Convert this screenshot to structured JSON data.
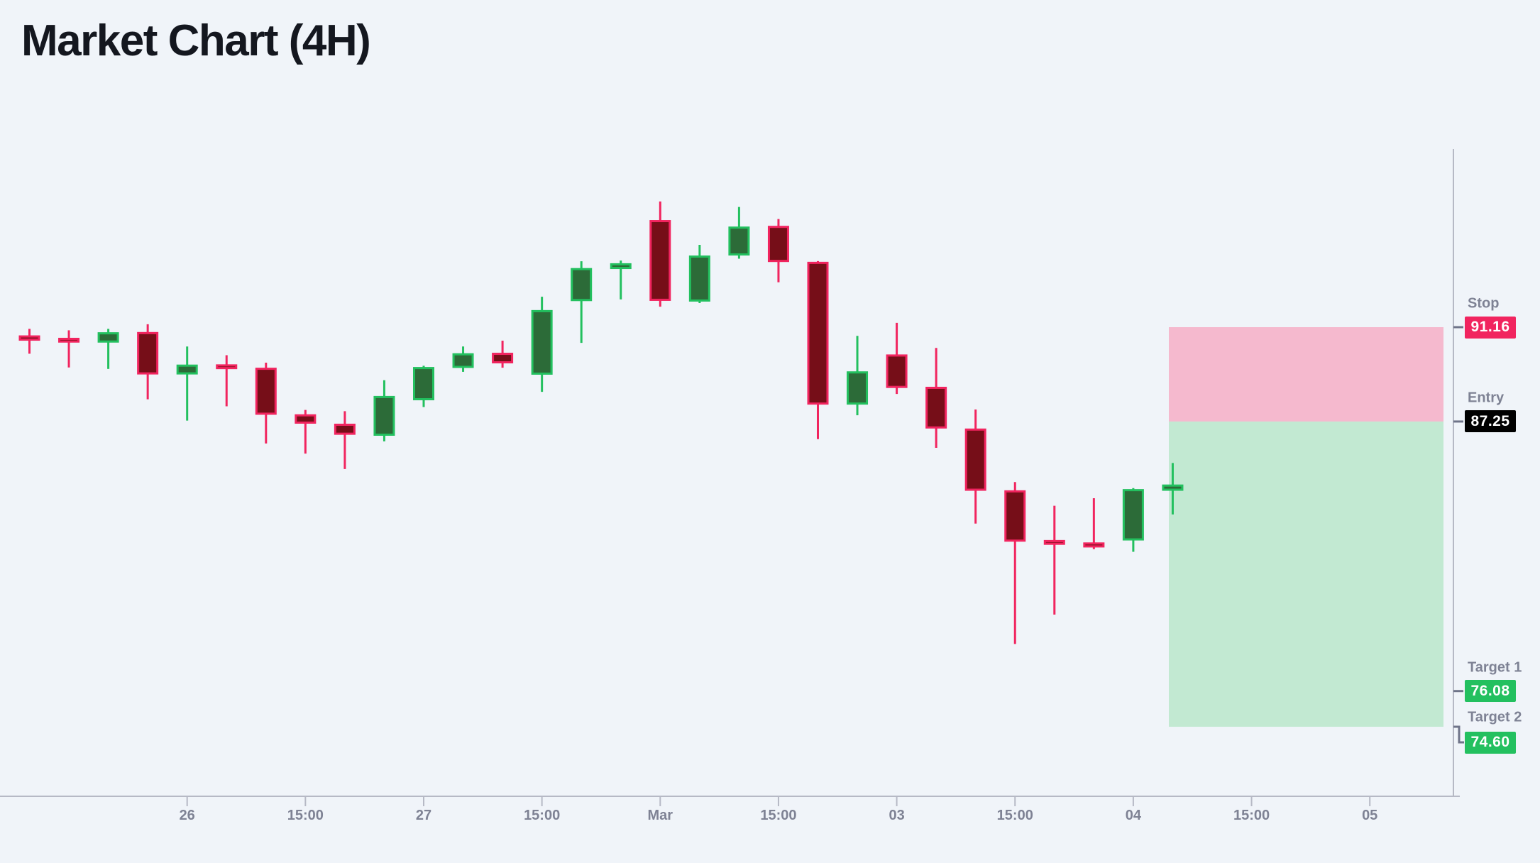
{
  "title": "Market Chart (4H)",
  "colors": {
    "background": "#f0f4f9",
    "bear_line": "#f1245f",
    "bear_body": "#760e18",
    "bull_line": "#23c05f",
    "bull_body": "#2c6b38",
    "stop_zone_fill": "#f5b9ce",
    "profit_zone_fill": "#c2e9d2",
    "stop_badge_bg": "#f1245f",
    "entry_badge_bg": "#000000",
    "target_badge_bg": "#23c05f",
    "axis_line": "#b6b9c5",
    "axis_text": "#7e8294",
    "level_tick": "#6f7489",
    "title_text": "#14171f"
  },
  "levels": {
    "stop": {
      "label": "Stop",
      "value": "91.16",
      "price": 91.16
    },
    "entry": {
      "label": "Entry",
      "value": "87.25",
      "price": 87.25
    },
    "target1": {
      "label": "Target 1",
      "value": "76.08",
      "price": 76.08
    },
    "target2": {
      "label": "Target 2",
      "value": "74.60",
      "price": 74.6
    }
  },
  "chart_data": {
    "type": "candlestick",
    "timeframe": "4H",
    "x_axis_labels": [
      {
        "candle_index": 4,
        "label": "26"
      },
      {
        "candle_index": 7,
        "label": "15:00"
      },
      {
        "candle_index": 10,
        "label": "27"
      },
      {
        "candle_index": 13,
        "label": "15:00"
      },
      {
        "candle_index": 16,
        "label": "Mar"
      },
      {
        "candle_index": 19,
        "label": "15:00"
      },
      {
        "candle_index": 22,
        "label": "03"
      },
      {
        "candle_index": 25,
        "label": "15:00"
      },
      {
        "candle_index": 28,
        "label": "04"
      },
      {
        "candle_index": 31,
        "label": "15:00"
      },
      {
        "candle_index": 34,
        "label": "05"
      }
    ],
    "candles": [
      {
        "o": 90.82,
        "h": 91.09,
        "l": 90.06,
        "c": 90.6
      },
      {
        "o": 90.72,
        "h": 91.03,
        "l": 89.49,
        "c": 90.52
      },
      {
        "o": 90.52,
        "h": 91.09,
        "l": 89.43,
        "c": 90.95
      },
      {
        "o": 90.96,
        "h": 91.28,
        "l": 88.17,
        "c": 89.2
      },
      {
        "o": 89.2,
        "h": 90.36,
        "l": 87.29,
        "c": 89.61
      },
      {
        "o": 89.62,
        "h": 90.0,
        "l": 87.88,
        "c": 89.42
      },
      {
        "o": 89.48,
        "h": 89.69,
        "l": 86.34,
        "c": 87.53
      },
      {
        "o": 87.55,
        "h": 87.73,
        "l": 85.92,
        "c": 87.16
      },
      {
        "o": 87.16,
        "h": 87.68,
        "l": 85.28,
        "c": 86.7
      },
      {
        "o": 86.66,
        "h": 88.96,
        "l": 86.43,
        "c": 88.31
      },
      {
        "o": 88.13,
        "h": 89.56,
        "l": 87.85,
        "c": 89.51
      },
      {
        "o": 89.47,
        "h": 90.36,
        "l": 89.31,
        "c": 90.08
      },
      {
        "o": 90.1,
        "h": 90.6,
        "l": 89.48,
        "c": 89.66
      },
      {
        "o": 89.19,
        "h": 92.42,
        "l": 88.48,
        "c": 91.87
      },
      {
        "o": 92.24,
        "h": 93.89,
        "l": 90.51,
        "c": 93.61
      },
      {
        "o": 93.57,
        "h": 93.92,
        "l": 92.31,
        "c": 93.81
      },
      {
        "o": 95.6,
        "h": 96.37,
        "l": 92.01,
        "c": 92.25
      },
      {
        "o": 92.22,
        "h": 94.57,
        "l": 92.16,
        "c": 94.13
      },
      {
        "o": 94.13,
        "h": 96.14,
        "l": 94.0,
        "c": 95.33
      },
      {
        "o": 95.36,
        "h": 95.64,
        "l": 93.02,
        "c": 93.86
      },
      {
        "o": 93.87,
        "h": 93.9,
        "l": 86.52,
        "c": 87.95
      },
      {
        "o": 87.95,
        "h": 90.8,
        "l": 87.51,
        "c": 89.33
      },
      {
        "o": 90.03,
        "h": 91.34,
        "l": 88.39,
        "c": 88.64
      },
      {
        "o": 88.69,
        "h": 90.3,
        "l": 86.16,
        "c": 86.96
      },
      {
        "o": 86.96,
        "h": 87.75,
        "l": 83.02,
        "c": 84.38
      },
      {
        "o": 84.4,
        "h": 84.74,
        "l": 78.03,
        "c": 82.27
      },
      {
        "o": 82.34,
        "h": 83.76,
        "l": 79.25,
        "c": 82.14
      },
      {
        "o": 82.24,
        "h": 84.07,
        "l": 81.96,
        "c": 82.03
      },
      {
        "o": 82.32,
        "h": 84.49,
        "l": 81.85,
        "c": 84.45
      },
      {
        "o": 84.38,
        "h": 85.53,
        "l": 83.4,
        "c": 84.64
      }
    ],
    "zones": [
      {
        "name": "stop-zone",
        "from_level": "entry",
        "to_level": "stop"
      },
      {
        "name": "profit-zone",
        "from_level": "entry",
        "to_level": "target2"
      }
    ],
    "legend_position": "right",
    "grid": false
  }
}
